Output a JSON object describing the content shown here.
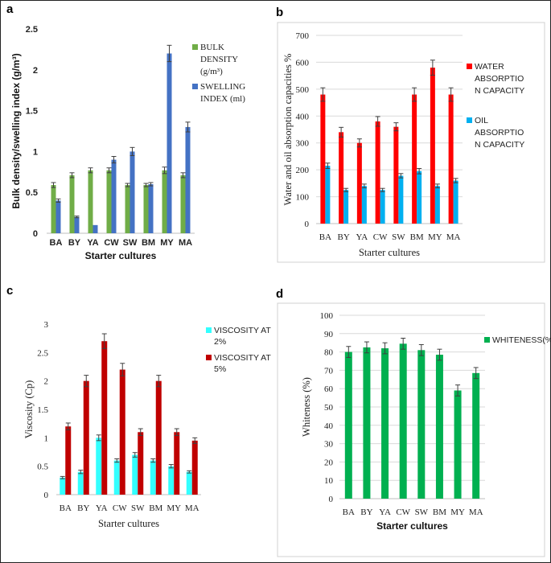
{
  "chart_data": [
    {
      "panel": "a",
      "type": "bar",
      "categories": [
        "BA",
        "BY",
        "YA",
        "CW",
        "SW",
        "BM",
        "MY",
        "MA"
      ],
      "series": [
        {
          "name": "BULK DENSITY (g/m³)",
          "legend_lines": [
            "BULK",
            "DENSITY",
            "(g/m³)"
          ],
          "color": "#70ad47",
          "values": [
            0.59,
            0.71,
            0.77,
            0.77,
            0.59,
            0.59,
            0.77,
            0.71
          ],
          "errors": [
            0.03,
            0.03,
            0.03,
            0.03,
            0.02,
            0.02,
            0.04,
            0.03
          ]
        },
        {
          "name": "SWELLING INDEX (ml)",
          "legend_lines": [
            "SWELLING",
            "INDEX (ml)"
          ],
          "color": "#4472c4",
          "values": [
            0.4,
            0.2,
            0.1,
            0.9,
            1.0,
            0.6,
            2.2,
            1.3
          ],
          "errors": [
            0.02,
            0.01,
            0.0,
            0.04,
            0.05,
            0.02,
            0.1,
            0.06
          ]
        }
      ],
      "ylim": [
        0,
        2.5
      ],
      "yticks": [
        "0",
        "0.5",
        "1",
        "1.5",
        "2",
        "2.5"
      ],
      "xlabel": "Starter cultures",
      "ylabel": "Bulk density/swelling index (g/m³)"
    },
    {
      "panel": "b",
      "type": "bar",
      "categories": [
        "BA",
        "BY",
        "YA",
        "CW",
        "SW",
        "BM",
        "MY",
        "MA"
      ],
      "series": [
        {
          "name": "WATER ABSORPTION CAPACITY",
          "legend_lines": [
            "WATER",
            "ABSORPTIO",
            "N CAPACITY"
          ],
          "color": "#ff0000",
          "values": [
            480,
            340,
            300,
            380,
            360,
            480,
            580,
            480
          ],
          "errors": [
            25,
            18,
            15,
            18,
            15,
            25,
            28,
            25
          ]
        },
        {
          "name": "OIL ABSORPTION CAPACITY",
          "legend_lines": [
            "OIL",
            "ABSORPTIO",
            "N CAPACITY"
          ],
          "color": "#00b0f0",
          "values": [
            215,
            125,
            140,
            125,
            178,
            195,
            140,
            160
          ],
          "errors": [
            10,
            6,
            7,
            6,
            8,
            10,
            7,
            8
          ]
        }
      ],
      "ylim": [
        0,
        700
      ],
      "yticks": [
        "0",
        "100",
        "200",
        "300",
        "400",
        "500",
        "600",
        "700"
      ],
      "xlabel": "Starter cultures",
      "ylabel": "Water and oil absorption capacities %"
    },
    {
      "panel": "c",
      "type": "bar",
      "categories": [
        "BA",
        "BY",
        "YA",
        "CW",
        "SW",
        "BM",
        "MY",
        "MA"
      ],
      "series": [
        {
          "name": "VISCOSITY AT 2%",
          "legend_lines": [
            "VISCOSITY AT",
            "2%"
          ],
          "color": "#33ffff",
          "values": [
            0.3,
            0.4,
            1.0,
            0.6,
            0.7,
            0.6,
            0.5,
            0.4
          ],
          "errors": [
            0.02,
            0.03,
            0.05,
            0.03,
            0.04,
            0.03,
            0.03,
            0.02
          ]
        },
        {
          "name": "VISCOSITY AT 5%",
          "legend_lines": [
            "VISCOSITY AT",
            "5%"
          ],
          "color": "#c00000",
          "values": [
            1.2,
            2.0,
            2.7,
            2.2,
            1.1,
            2.0,
            1.1,
            0.95
          ],
          "errors": [
            0.06,
            0.1,
            0.13,
            0.11,
            0.06,
            0.1,
            0.06,
            0.05
          ]
        }
      ],
      "ylim": [
        0,
        3
      ],
      "yticks": [
        "0",
        "0.5",
        "1",
        "1.5",
        "2",
        "2.5",
        "3"
      ],
      "xlabel": "Starter cultures",
      "ylabel": "Viscosity (Cp)"
    },
    {
      "panel": "d",
      "type": "bar",
      "categories": [
        "BA",
        "BY",
        "YA",
        "CW",
        "SW",
        "BM",
        "MY",
        "MA"
      ],
      "series": [
        {
          "name": "WHITENESS(%)",
          "legend_lines": [
            "WHITENESS(%)"
          ],
          "color": "#00b050",
          "values": [
            80,
            82.5,
            82,
            84.5,
            81,
            78.5,
            59,
            68.5
          ],
          "errors": [
            3,
            3,
            3,
            3,
            3,
            3,
            3,
            3
          ]
        }
      ],
      "ylim": [
        0,
        100
      ],
      "yticks": [
        "0",
        "10",
        "20",
        "30",
        "40",
        "50",
        "60",
        "70",
        "80",
        "90",
        "100"
      ],
      "xlabel": "Starter cultures",
      "ylabel": "Whiteness (%)"
    }
  ]
}
